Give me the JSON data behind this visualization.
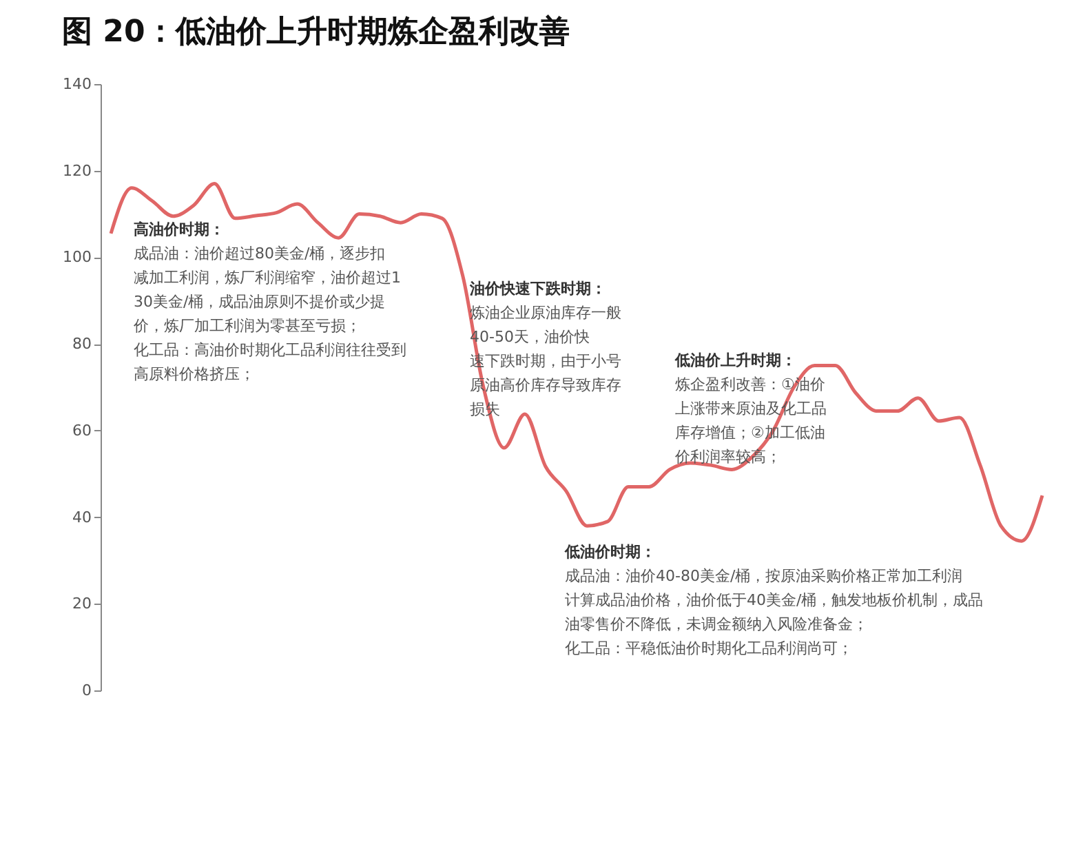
{
  "chart_data": {
    "type": "line",
    "title": "图 20：低油价上升时期炼企盈利改善",
    "categories": [
      null,
      null,
      null,
      null,
      null,
      null,
      null,
      null,
      null,
      null,
      null,
      null,
      null,
      null,
      null,
      null,
      null,
      null,
      null,
      null,
      null,
      null,
      null,
      null,
      null,
      null,
      null,
      null,
      null,
      null,
      null,
      null,
      null,
      null,
      null,
      null,
      null,
      null,
      null,
      null,
      null,
      null,
      null,
      null,
      null,
      null
    ],
    "series": [
      {
        "color": "#e06666",
        "values": [
          105.5,
          116,
          113,
          109.5,
          112,
          117,
          109,
          109.6,
          110.3,
          112.3,
          108,
          104.5,
          110,
          109.5,
          108,
          110,
          109,
          95.7,
          70,
          56,
          63.8,
          51.7,
          46,
          38,
          39,
          47,
          47,
          51,
          52.5,
          52,
          51,
          54,
          60,
          70,
          75,
          75,
          68.6,
          64.5,
          64.5,
          67.5,
          62.2,
          63,
          52,
          38,
          34.5,
          45
        ]
      }
    ],
    "ylim": [
      0,
      140
    ],
    "yticks": [
      0,
      20,
      40,
      60,
      80,
      100,
      120,
      140
    ],
    "grid": false,
    "tick_labels": "y",
    "marker": "none",
    "line_style": "solid",
    "annotations": [
      "高油价时期：",
      "成品油：油价超过80美金/桶，逐步扣减加工利润，炼厂利润缩窄，油价超过130美金/桶，成品油原则不提价或少提价，炼厂加工利润为零甚至亏损；",
      "化工品：高油价时期化工品利润往往受到高原料价格挤压；",
      "油价快速下跌时期：",
      "炼油企业原油库存一般40-50天，油价快速下跌时期，由于小号原油高价库存导致库存损失",
      "低油价上升时期：",
      "炼企盈利改善：①油价上涨带来原油及化工品库存增值；②加工低油价利润率较高；",
      "低油价时期：",
      "成品油：油价40-80美金/桶，按原油采购价格正常加工利润计算成品油价格，油价低于40美金/桶，触发地板价机制，成品油零售价不降低，未调金额纳入风险准备金；",
      "化工品：平稳低油价时期化工品利润尚可；"
    ]
  }
}
